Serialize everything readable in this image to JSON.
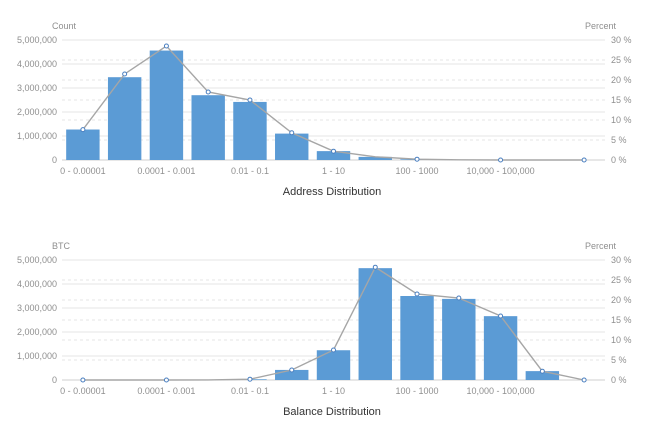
{
  "colors": {
    "bar": "#5b9bd5",
    "line": "#a6a6a6",
    "grid": "#e6e6e6",
    "axis_text": "#8f8f8f",
    "title": "#333333"
  },
  "chart_data": [
    {
      "type": "bar",
      "title": "Address Distribution",
      "left_axis_label": "Count",
      "right_axis_label": "Percent",
      "x_tick_labels": [
        "0 - 0.00001",
        "0.0001 - 0.001",
        "0.01 - 0.1",
        "1 - 10",
        "100 - 1000",
        "10,000 - 100,000"
      ],
      "y_ticks": [
        "0",
        "1,000,000",
        "2,000,000",
        "3,000,000",
        "4,000,000",
        "5,000,000"
      ],
      "y2_ticks": [
        "0 %",
        "5 %",
        "10 %",
        "15 %",
        "20 %",
        "25 %",
        "30 %"
      ],
      "ylim": [
        0,
        5000000
      ],
      "y2lim": [
        0,
        30
      ],
      "grid": true,
      "series": [
        {
          "type": "bar",
          "values": [
            1270000,
            3450000,
            4560000,
            2700000,
            2420000,
            1100000,
            370000,
            130000,
            30000,
            8000,
            2000,
            500,
            100
          ]
        },
        {
          "type": "line",
          "axis": "right",
          "values": [
            7.6,
            21.5,
            28.5,
            17.0,
            15.0,
            6.8,
            2.2,
            0.8,
            0.2,
            0.05,
            0.01,
            0.0,
            0.0
          ]
        }
      ]
    },
    {
      "type": "bar",
      "title": "Balance Distribution",
      "left_axis_label": "BTC",
      "right_axis_label": "Percent",
      "x_tick_labels": [
        "0 - 0.00001",
        "0.0001 - 0.001",
        "0.01 - 0.1",
        "1 - 10",
        "100 - 1000",
        "10,000 - 100,000"
      ],
      "y_ticks": [
        "0",
        "1,000,000",
        "2,000,000",
        "3,000,000",
        "4,000,000",
        "5,000,000"
      ],
      "y2_ticks": [
        "0 %",
        "5 %",
        "10 %",
        "15 %",
        "20 %",
        "25 %",
        "30 %"
      ],
      "ylim": [
        0,
        5000000
      ],
      "y2lim": [
        0,
        30
      ],
      "grid": true,
      "series": [
        {
          "type": "bar",
          "values": [
            5,
            100,
            500,
            5000,
            30000,
            420000,
            1240000,
            4660000,
            3500000,
            3380000,
            2660000,
            370000,
            0
          ]
        },
        {
          "type": "line",
          "axis": "right",
          "values": [
            0.0,
            0.0,
            0.0,
            0.02,
            0.2,
            2.5,
            7.5,
            28.2,
            21.5,
            20.5,
            16.0,
            2.2,
            0.0
          ]
        }
      ]
    }
  ]
}
